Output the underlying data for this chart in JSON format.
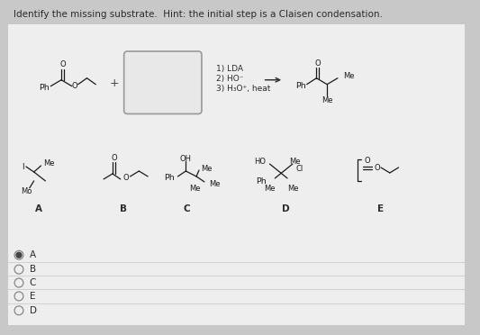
{
  "title": "Identify the missing substrate.  Hint: the initial step is a Claisen condensation.",
  "bg_color": "#c8c8c8",
  "panel_bg": "#ebebeb",
  "text_color": "#2a2a2a",
  "radio_options": [
    "A",
    "B",
    "C",
    "E",
    "D"
  ],
  "selected_option": "A",
  "answer_labels": [
    "A",
    "B",
    "C",
    "D",
    "E"
  ],
  "font_size_title": 7.5,
  "font_size_label": 7.5,
  "font_size_chem": 6.5,
  "font_size_radio": 7.5
}
